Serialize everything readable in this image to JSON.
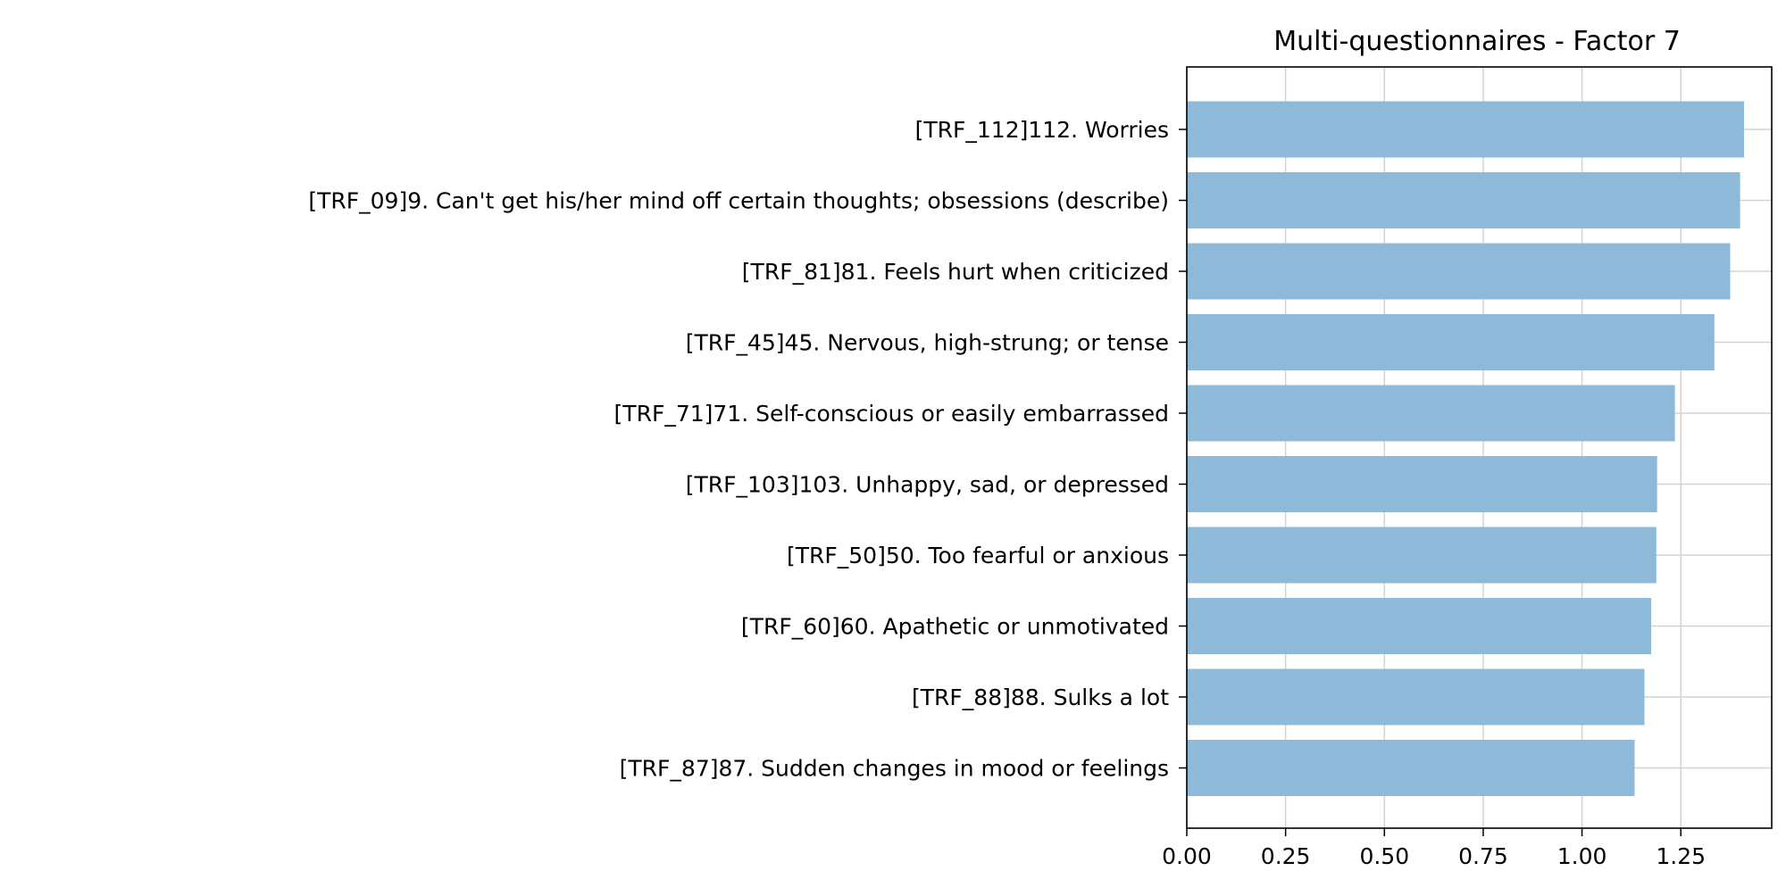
{
  "chart_data": {
    "type": "bar",
    "orientation": "horizontal",
    "title": "Multi-questionnaires - Factor 7",
    "xlabel": "",
    "ylabel": "",
    "categories": [
      "[TRF_112]112. Worries",
      "[TRF_09]9. Can't get his/her mind off certain thoughts; obsessions (describe)",
      "[TRF_81]81. Feels hurt when criticized",
      "[TRF_45]45. Nervous, high-strung; or tense",
      "[TRF_71]71. Self-conscious or easily embarrassed",
      "[TRF_103]103. Unhappy, sad, or depressed",
      "[TRF_50]50. Too fearful or anxious",
      "[TRF_60]60. Apathetic or unmotivated",
      "[TRF_88]88. Sulks a lot",
      "[TRF_87]87. Sudden changes in mood or feelings"
    ],
    "values": [
      1.41,
      1.4,
      1.375,
      1.335,
      1.235,
      1.19,
      1.188,
      1.175,
      1.158,
      1.133
    ],
    "xlim": [
      0,
      1.48
    ],
    "xticks": [
      "0.00",
      "0.25",
      "0.50",
      "0.75",
      "1.00",
      "1.25"
    ],
    "grid": true,
    "bar_color": "#8fb9d9",
    "grid_color": "#d3d3d3"
  }
}
